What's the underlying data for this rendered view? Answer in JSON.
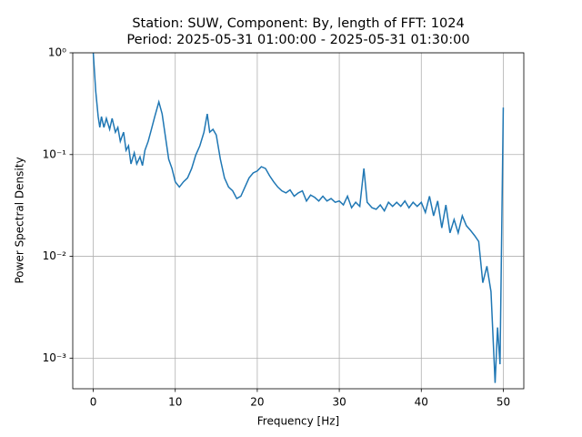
{
  "chart_data": {
    "type": "line",
    "title": "Station: SUW, Component: By, length of FFT: 1024",
    "subtitle": "Period: 2025-05-31 01:00:00 - 2025-05-31 01:30:00",
    "x_label": "Frequency [Hz]",
    "y_label": "Power Spectral Density",
    "log_y": true,
    "grid": true,
    "xlim": [
      -2.5,
      52.5
    ],
    "ylim": [
      0.0005,
      1
    ],
    "xticks": [
      0,
      10,
      20,
      30,
      40,
      50
    ],
    "yticks": [
      {
        "value": 0.001,
        "label": "10⁻³"
      },
      {
        "value": 0.01,
        "label": "10⁻²"
      },
      {
        "value": 0.1,
        "label": "10⁻¹"
      },
      {
        "value": 1,
        "label": "10⁰"
      }
    ],
    "series": [
      {
        "color": "#1f77b4",
        "x": [
          0,
          0.3,
          0.6,
          0.8,
          1.0,
          1.3,
          1.6,
          2.0,
          2.3,
          2.7,
          3.0,
          3.3,
          3.7,
          4.0,
          4.3,
          4.6,
          5.0,
          5.3,
          5.7,
          6.0,
          6.3,
          6.7,
          7.0,
          7.5,
          8.0,
          8.4,
          8.8,
          9.2,
          9.6,
          10.0,
          10.5,
          11.0,
          11.5,
          12.0,
          12.5,
          13.0,
          13.5,
          13.9,
          14.2,
          14.6,
          15.0,
          15.5,
          16.0,
          16.5,
          17.0,
          17.5,
          18.0,
          18.5,
          19.0,
          19.5,
          20.0,
          20.5,
          21.0,
          21.5,
          22.0,
          22.5,
          23.0,
          23.5,
          24.0,
          24.5,
          25.0,
          25.5,
          26.0,
          26.5,
          27.0,
          27.5,
          28.0,
          28.5,
          29.0,
          29.5,
          30.0,
          30.5,
          31.0,
          31.5,
          32.0,
          32.5,
          33.0,
          33.4,
          34.0,
          34.5,
          35.0,
          35.5,
          36.0,
          36.5,
          37.0,
          37.5,
          38.0,
          38.5,
          39.0,
          39.5,
          40.0,
          40.5,
          41.0,
          41.5,
          42.0,
          42.5,
          43.0,
          43.5,
          44.0,
          44.5,
          45.0,
          45.5,
          46.0,
          46.5,
          47.0,
          47.5,
          48.0,
          48.5,
          49.0,
          49.3,
          49.6,
          50.0
        ],
        "values": [
          1.0,
          0.421,
          0.236,
          0.185,
          0.236,
          0.185,
          0.227,
          0.177,
          0.227,
          0.166,
          0.185,
          0.135,
          0.166,
          0.11,
          0.122,
          0.081,
          0.104,
          0.081,
          0.095,
          0.078,
          0.11,
          0.135,
          0.166,
          0.236,
          0.329,
          0.251,
          0.15,
          0.09,
          0.073,
          0.054,
          0.048,
          0.054,
          0.059,
          0.073,
          0.099,
          0.122,
          0.166,
          0.251,
          0.166,
          0.177,
          0.156,
          0.09,
          0.059,
          0.048,
          0.044,
          0.037,
          0.039,
          0.048,
          0.059,
          0.066,
          0.069,
          0.076,
          0.073,
          0.062,
          0.054,
          0.048,
          0.044,
          0.042,
          0.045,
          0.039,
          0.042,
          0.044,
          0.035,
          0.04,
          0.038,
          0.035,
          0.039,
          0.035,
          0.037,
          0.034,
          0.035,
          0.032,
          0.039,
          0.03,
          0.034,
          0.031,
          0.073,
          0.034,
          0.03,
          0.029,
          0.032,
          0.028,
          0.034,
          0.031,
          0.034,
          0.031,
          0.035,
          0.03,
          0.034,
          0.031,
          0.034,
          0.027,
          0.039,
          0.025,
          0.035,
          0.019,
          0.032,
          0.017,
          0.023,
          0.017,
          0.025,
          0.02,
          0.018,
          0.016,
          0.014,
          0.0055,
          0.008,
          0.0045,
          0.00057,
          0.002,
          0.00087,
          0.29
        ]
      }
    ]
  }
}
